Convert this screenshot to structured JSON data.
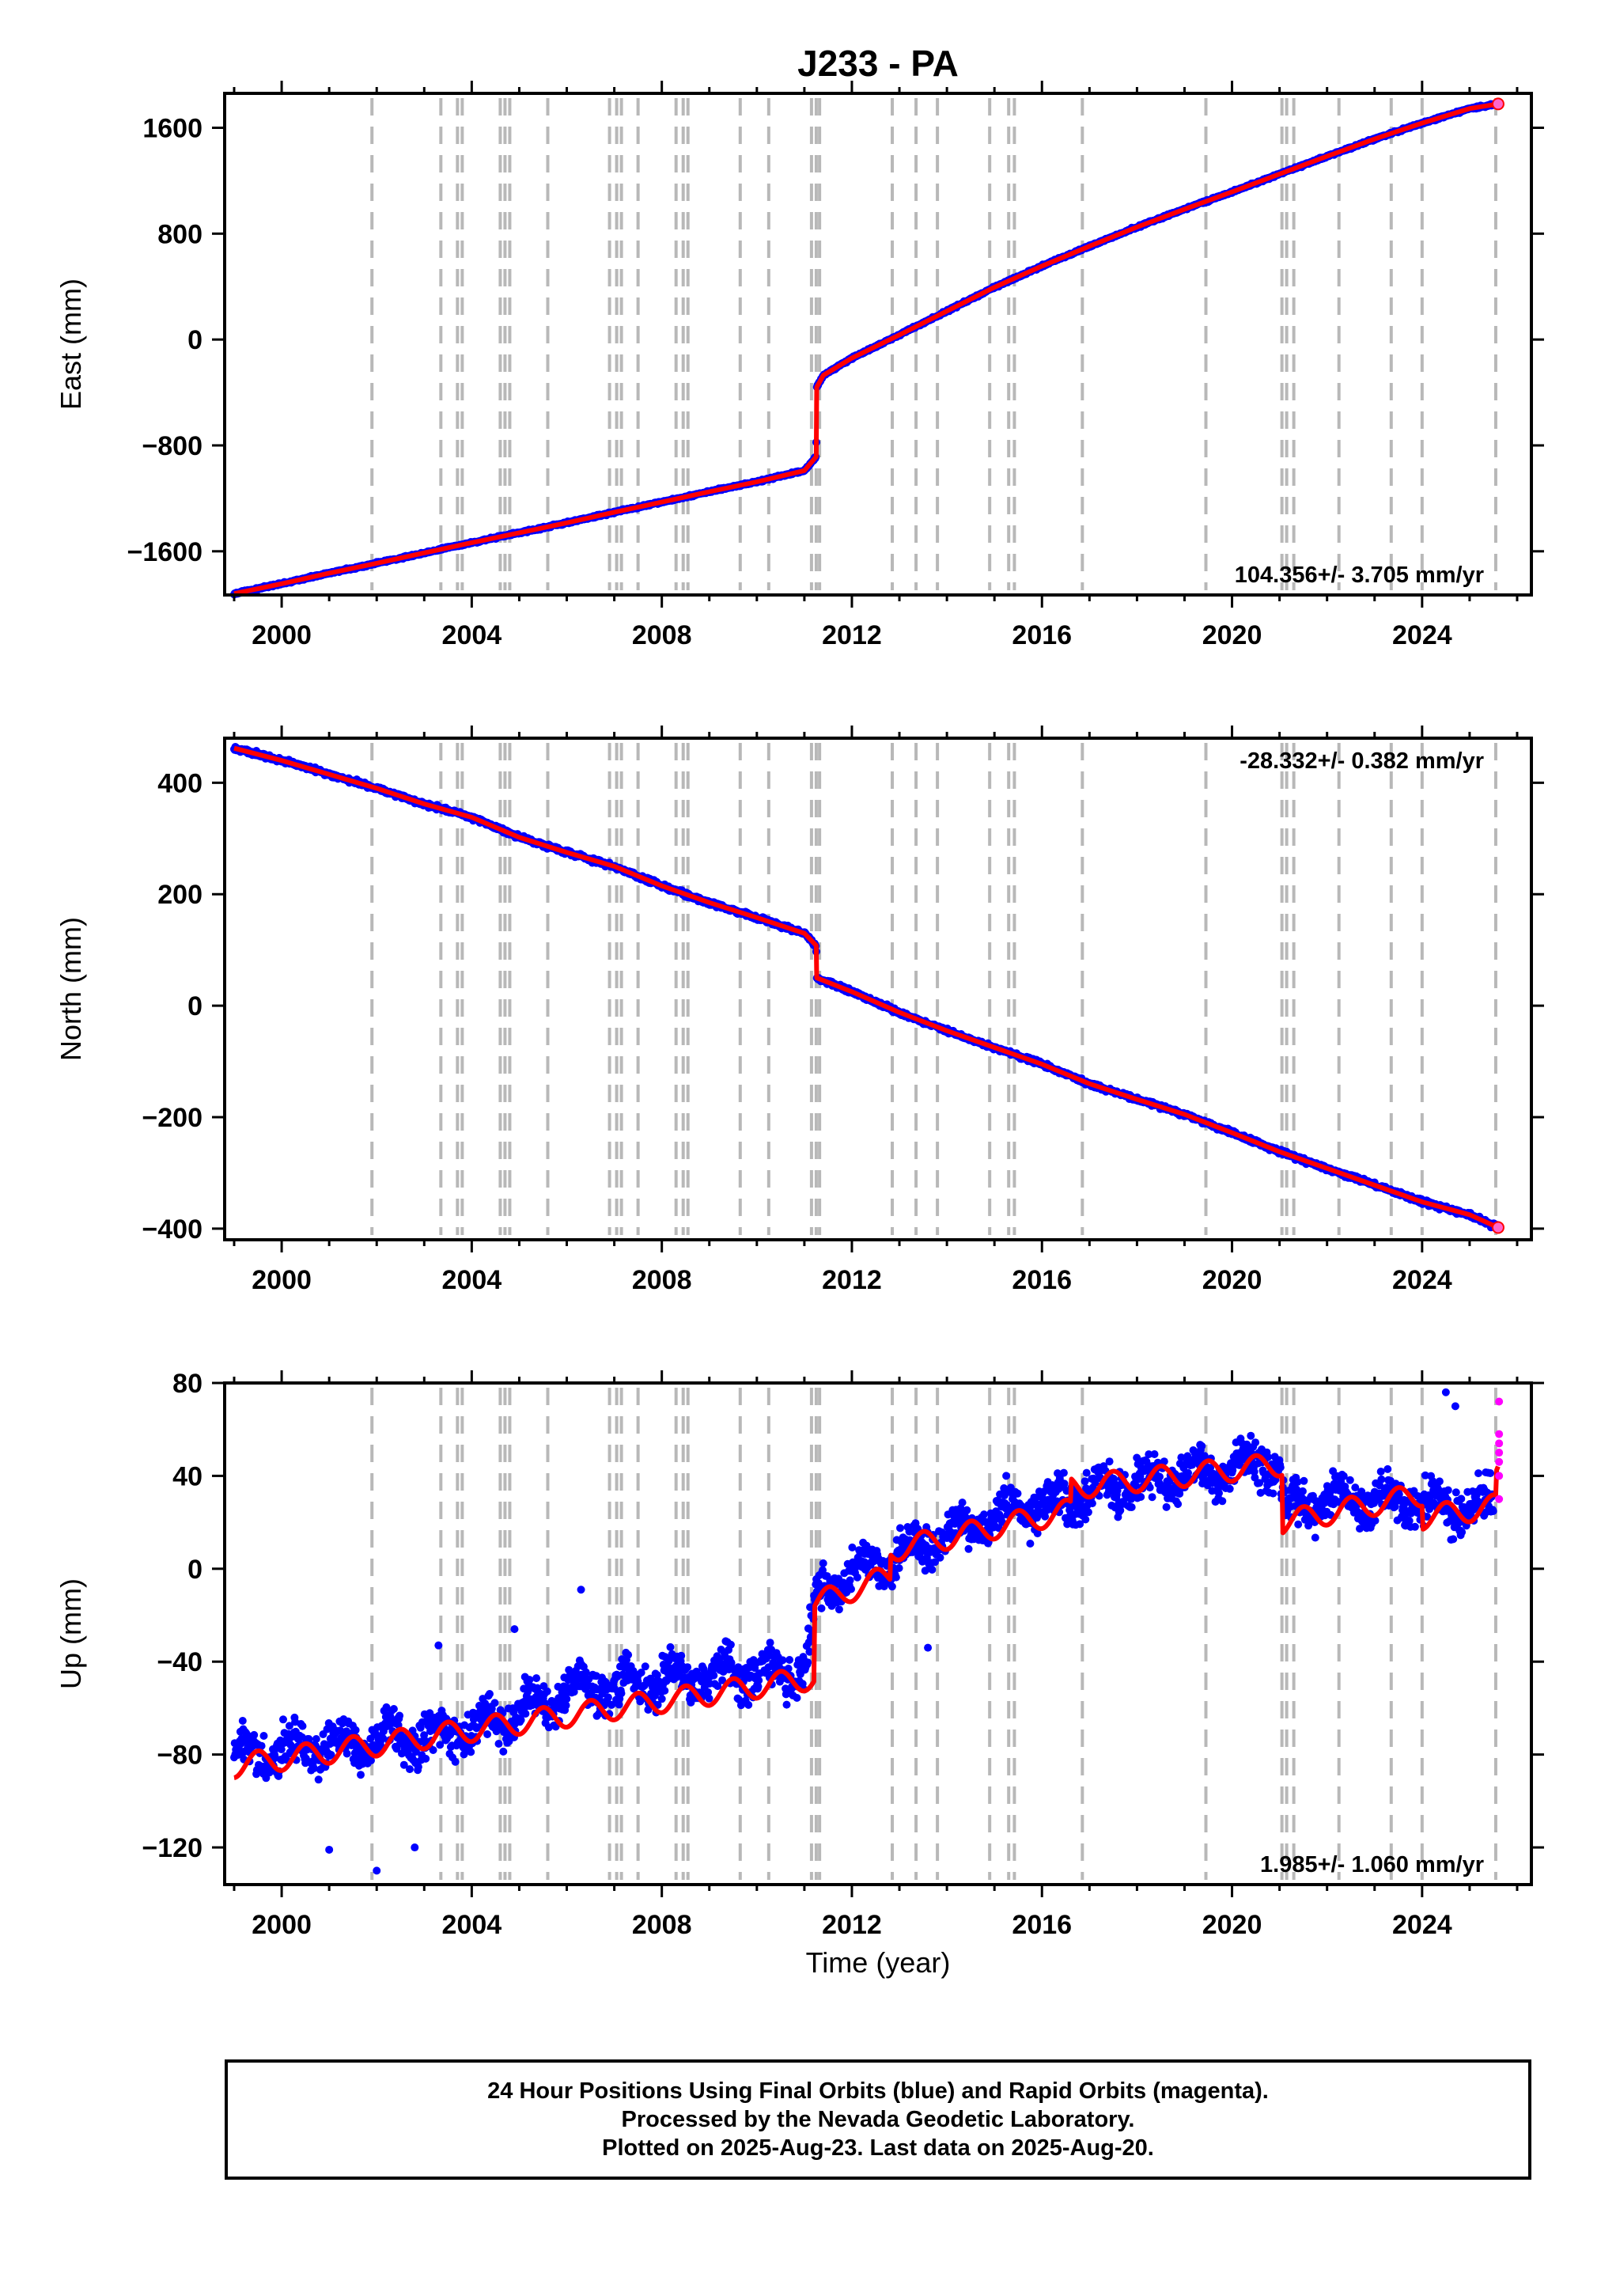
{
  "chart_data": {
    "title": "J233 - PA",
    "type": "scatter",
    "xlabel": "Time (year)",
    "xlim": [
      1998.8,
      2026.3
    ],
    "xticks": [
      2000,
      2004,
      2008,
      2012,
      2016,
      2020,
      2024
    ],
    "event_lines": [
      2001.9,
      2003.35,
      2003.7,
      2003.8,
      2004.6,
      2004.7,
      2004.8,
      2005.6,
      2006.9,
      2007.05,
      2007.15,
      2007.5,
      2008.3,
      2008.45,
      2008.55,
      2009.65,
      2010.25,
      2011.15,
      2011.25,
      2011.32,
      2012.85,
      2013.35,
      2013.8,
      2014.9,
      2015.3,
      2015.42,
      2016.85,
      2019.45,
      2021.05,
      2021.15,
      2021.3,
      2022.25,
      2023.35,
      2024.0,
      2025.55
    ],
    "panels": [
      {
        "id": "east",
        "ylabel": "East (mm)",
        "ylim": [
          -1930,
          1860
        ],
        "yticks": [
          -1600,
          -800,
          0,
          800,
          1600
        ],
        "ytick_labels": [
          "-1600",
          "-800",
          "0",
          "800",
          "1600"
        ],
        "rate": "104.356+/- 3.705 mm/yr",
        "rate_position": "bottom-right",
        "series": [
          {
            "color": "#0000ff",
            "role": "daily positions",
            "x": [
              1999.0,
              2000.0,
              2001.0,
              2002.0,
              2003.0,
              2004.0,
              2005.0,
              2006.0,
              2007.0,
              2008.0,
              2009.0,
              2010.0,
              2011.0,
              2011.25,
              2011.26,
              2011.4,
              2011.7,
              2012.0,
              2013.0,
              2014.0,
              2015.0,
              2016.0,
              2017.0,
              2018.0,
              2019.0,
              2020.0,
              2021.0,
              2022.0,
              2023.0,
              2024.0,
              2025.0,
              2025.6
            ],
            "y": [
              -1920,
              -1845,
              -1765,
              -1690,
              -1612,
              -1535,
              -1460,
              -1385,
              -1305,
              -1228,
              -1150,
              -1075,
              -990,
              -885,
              -360,
              -270,
              -205,
              -140,
              35,
              215,
              395,
              555,
              705,
              850,
              985,
              1115,
              1250,
              1385,
              1515,
              1635,
              1745,
              1780
            ]
          },
          {
            "color": "#ff0000",
            "role": "model fit",
            "x": [
              1999.0,
              2000.0,
              2001.0,
              2002.0,
              2003.0,
              2004.0,
              2005.0,
              2006.0,
              2007.0,
              2008.0,
              2009.0,
              2010.0,
              2011.0,
              2011.25,
              2011.26,
              2011.4,
              2011.7,
              2012.0,
              2013.0,
              2014.0,
              2015.0,
              2016.0,
              2017.0,
              2018.0,
              2019.0,
              2020.0,
              2021.0,
              2022.0,
              2023.0,
              2024.0,
              2025.0,
              2025.6
            ],
            "y": [
              -1920,
              -1845,
              -1765,
              -1690,
              -1612,
              -1535,
              -1460,
              -1385,
              -1305,
              -1228,
              -1150,
              -1075,
              -990,
              -885,
              -360,
              -270,
              -205,
              -140,
              35,
              215,
              395,
              555,
              705,
              850,
              985,
              1115,
              1250,
              1385,
              1515,
              1635,
              1745,
              1780
            ]
          }
        ]
      },
      {
        "id": "north",
        "ylabel": "North (mm)",
        "ylim": [
          -420,
          480
        ],
        "yticks": [
          -400,
          -200,
          0,
          200,
          400
        ],
        "ytick_labels": [
          "-400",
          "-200",
          "0",
          "200",
          "400"
        ],
        "rate": "-28.332+/- 0.382 mm/yr",
        "rate_position": "top-right",
        "series": [
          {
            "color": "#0000ff",
            "role": "daily positions",
            "x": [
              1999.0,
              2000.0,
              2001.0,
              2002.0,
              2003.0,
              2004.0,
              2005.0,
              2006.0,
              2007.0,
              2008.0,
              2009.0,
              2010.0,
              2011.0,
              2011.25,
              2011.26,
              2012.0,
              2013.0,
              2014.0,
              2015.0,
              2016.0,
              2017.0,
              2018.0,
              2019.0,
              2020.0,
              2021.0,
              2022.0,
              2023.0,
              2024.0,
              2025.0,
              2025.6
            ],
            "y": [
              462,
              440,
              415,
              390,
              362,
              338,
              302,
              275,
              250,
              215,
              185,
              158,
              130,
              108,
              50,
              25,
              -12,
              -45,
              -75,
              -105,
              -140,
              -168,
              -195,
              -228,
              -262,
              -292,
              -322,
              -352,
              -375,
              -398
            ]
          },
          {
            "color": "#ff0000",
            "role": "model fit",
            "x": [
              1999.0,
              2000.0,
              2001.0,
              2002.0,
              2003.0,
              2004.0,
              2005.0,
              2006.0,
              2007.0,
              2008.0,
              2009.0,
              2010.0,
              2011.0,
              2011.25,
              2011.26,
              2012.0,
              2013.0,
              2014.0,
              2015.0,
              2016.0,
              2017.0,
              2018.0,
              2019.0,
              2020.0,
              2021.0,
              2022.0,
              2023.0,
              2024.0,
              2025.0,
              2025.6
            ],
            "y": [
              462,
              440,
              415,
              390,
              362,
              338,
              302,
              275,
              250,
              215,
              185,
              158,
              130,
              108,
              50,
              25,
              -12,
              -45,
              -75,
              -105,
              -140,
              -168,
              -195,
              -228,
              -262,
              -292,
              -322,
              -352,
              -375,
              -398
            ]
          }
        ]
      },
      {
        "id": "up",
        "ylabel": "Up (mm)",
        "ylim": [
          -136,
          80
        ],
        "yticks": [
          -120,
          -80,
          -40,
          0,
          40,
          80
        ],
        "ytick_labels": [
          "-120",
          "-80",
          "-40",
          "0",
          "40",
          "80"
        ],
        "rate": "1.985+/- 1.060 mm/yr",
        "rate_position": "bottom-right",
        "series": [
          {
            "color": "#0000ff",
            "role": "daily positions",
            "x": [
              1999.0,
              2000.0,
              2001.0,
              2002.0,
              2003.0,
              2004.0,
              2005.0,
              2006.0,
              2007.0,
              2008.0,
              2009.0,
              2010.0,
              2011.0,
              2011.3,
              2012.0,
              2013.0,
              2014.0,
              2015.0,
              2016.0,
              2017.0,
              2018.0,
              2019.0,
              2020.0,
              2021.0,
              2021.1,
              2022.0,
              2023.0,
              2024.0,
              2025.0,
              2025.5
            ],
            "y": [
              -80,
              -78,
              -76,
              -74,
              -72,
              -68,
              -62,
              -52,
              -50,
              -48,
              -46,
              -45,
              -44,
              -12,
              -2,
              5,
              15,
              22,
              28,
              33,
              36,
              40,
              44,
              45,
              25,
              30,
              30,
              28,
              27,
              30
            ]
          },
          {
            "color": "#ff0000",
            "role": "model fit",
            "x": [
              1999.0,
              2011.2,
              2011.22,
              2012.8,
              2012.82,
              2016.6,
              2016.62,
              2021.05,
              2021.07,
              2024.0,
              2024.02,
              2025.55,
              2025.57,
              2025.6
            ],
            "y": [
              -85,
              -47,
              -15,
              -3,
              8,
              25,
              35,
              45,
              20,
              32,
              22,
              27,
              38,
              40
            ]
          },
          {
            "color": "#ff00ff",
            "role": "rapid positions",
            "x": [
              2025.62,
              2025.62,
              2025.62,
              2025.62,
              2025.62,
              2025.62,
              2025.62
            ],
            "y": [
              72,
              58,
              54,
              50,
              46,
              40,
              30
            ]
          }
        ]
      }
    ]
  },
  "caption": {
    "line1": "24 Hour Positions Using Final Orbits (blue) and Rapid Orbits (magenta).",
    "line2": "Processed by the Nevada Geodetic Laboratory.",
    "line3": "Plotted on 2025-Aug-23. Last data on 2025-Aug-20."
  }
}
